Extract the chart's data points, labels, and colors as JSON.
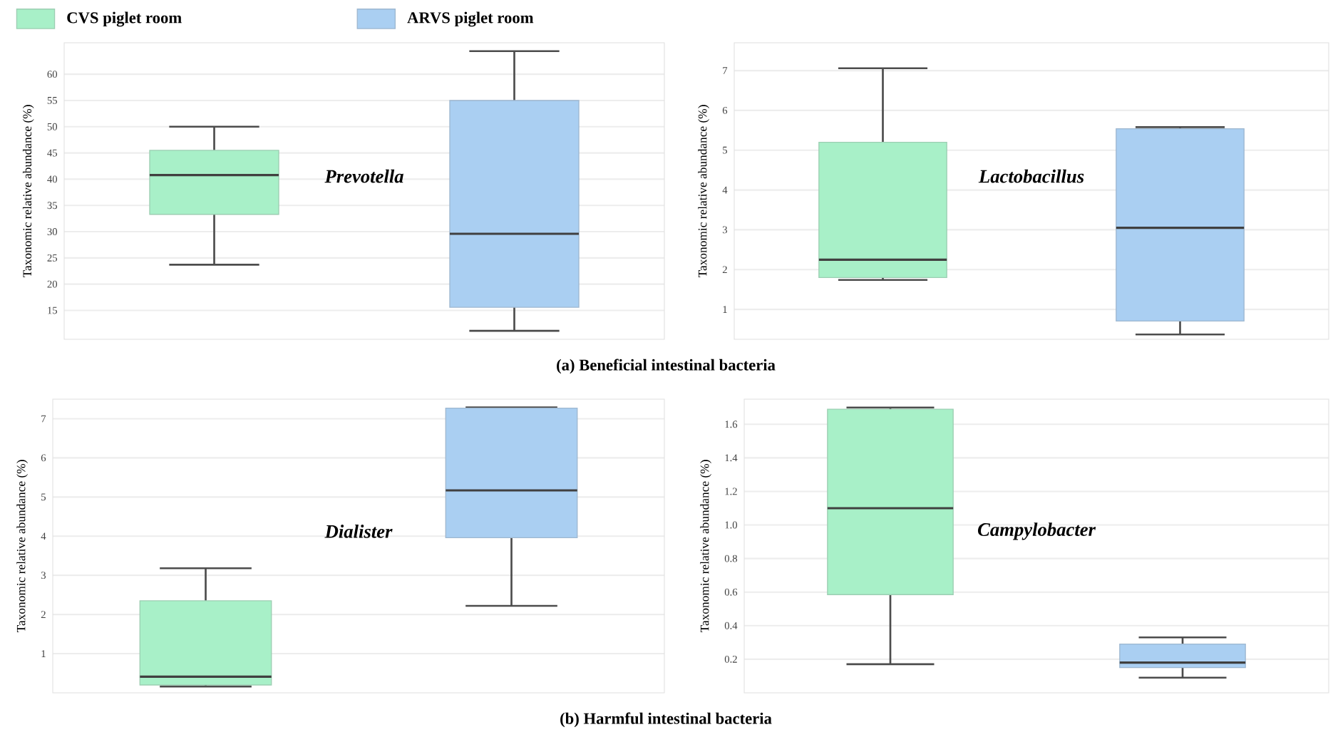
{
  "chart_data": [
    {
      "type": "box",
      "ylabel": "Taxonomic relative abundance (%)",
      "categories": [
        null,
        null
      ],
      "ylim": [
        9.5,
        66
      ],
      "yticks": [
        15,
        20,
        25,
        30,
        35,
        40,
        45,
        50,
        55,
        60
      ],
      "grid": "y",
      "legend": "top left",
      "series": [
        {
          "name": "CVS piglet room",
          "color": "#a8f0c8",
          "boxes": [
            {
              "low": 23.7,
              "q1": 33.3,
              "median": 40.8,
              "q3": 45.5,
              "high": 50
            },
            null
          ]
        },
        {
          "name": "ARVS piglet room",
          "color": "#aacff2",
          "boxes": [
            null,
            {
              "low": 11.1,
              "q1": 15.6,
              "median": 29.6,
              "q3": 55,
              "high": 64.4
            }
          ]
        }
      ],
      "annotations": [
        "Prevotella",
        "(a) Beneficial intestinal bacteria"
      ]
    },
    {
      "type": "box",
      "ylabel": "Taxonomic relative abundance (%)",
      "categories": [
        null,
        null
      ],
      "ylim": [
        0.25,
        7.7
      ],
      "yticks": [
        1,
        2,
        3,
        4,
        5,
        6,
        7
      ],
      "grid": "y",
      "series": [
        {
          "color": "#a8f0c8",
          "boxes": [
            {
              "low": 1.74,
              "q1": 1.8,
              "median": 2.25,
              "q3": 5.2,
              "high": 7.06
            },
            null
          ]
        },
        {
          "color": "#aacff2",
          "boxes": [
            null,
            {
              "low": 0.37,
              "q1": 0.71,
              "median": 3.05,
              "q3": 5.54,
              "high": 5.58
            }
          ]
        }
      ],
      "annotations": [
        "Lactobacillus"
      ]
    },
    {
      "type": "box",
      "ylabel": "Taxonomic relative abundance (%)",
      "categories": [
        null,
        null
      ],
      "ylim": [
        0,
        7.5
      ],
      "yticks": [
        1,
        2,
        3,
        4,
        5,
        6,
        7
      ],
      "grid": "y",
      "series": [
        {
          "color": "#a8f0c8",
          "boxes": [
            {
              "low": 0.16,
              "q1": 0.2,
              "median": 0.41,
              "q3": 2.35,
              "high": 3.18
            },
            null
          ]
        },
        {
          "color": "#aacff2",
          "boxes": [
            null,
            {
              "low": 2.22,
              "q1": 3.96,
              "median": 5.17,
              "q3": 7.27,
              "high": 7.29
            }
          ]
        }
      ],
      "annotations": [
        "Dialister",
        "(b) Harmful intestinal bacteria"
      ]
    },
    {
      "type": "box",
      "ylabel": "Taxonomic relative abundance (%)",
      "categories": [
        null,
        null
      ],
      "ylim": [
        0,
        1.75
      ],
      "yticks": [
        0.2,
        0.4,
        0.6,
        0.8,
        {
          "value": 1,
          "label": "1.0"
        },
        1.2,
        1.4,
        1.6
      ],
      "grid": "y",
      "series": [
        {
          "color": "#a8f0c8",
          "boxes": [
            {
              "low": 0.17,
              "q1": 0.585,
              "median": 1.1,
              "q3": 1.69,
              "high": 1.7
            },
            null
          ]
        },
        {
          "color": "#aacff2",
          "boxes": [
            null,
            {
              "low": 0.09,
              "q1": 0.15,
              "median": 0.18,
              "q3": 0.29,
              "high": 0.33
            }
          ]
        }
      ],
      "annotations": [
        "Campylobacter"
      ]
    }
  ]
}
